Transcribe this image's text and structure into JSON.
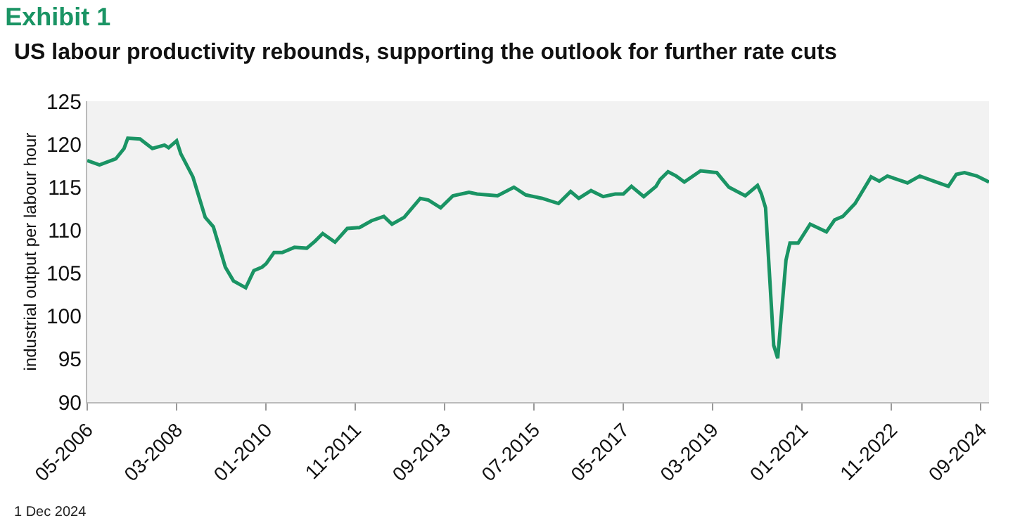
{
  "chart_data": {
    "type": "line",
    "title": "Exhibit 1",
    "subtitle": "US labour productivity rebounds, supporting the outlook for further rate cuts",
    "ylabel": "industrial output per labour hour",
    "annotations": [
      "1 Dec 2024"
    ],
    "x": [
      "2006-05",
      "2006-08",
      "2006-12",
      "2007-02",
      "2007-03",
      "2007-06",
      "2007-09",
      "2007-12",
      "2008-01",
      "2008-03",
      "2008-04",
      "2008-07",
      "2008-10",
      "2008-12",
      "2009-03",
      "2009-05",
      "2009-08",
      "2009-10",
      "2009-12",
      "2010-01",
      "2010-03",
      "2010-05",
      "2010-08",
      "2010-11",
      "2011-01",
      "2011-03",
      "2011-06",
      "2011-09",
      "2011-12",
      "2012-03",
      "2012-06",
      "2012-08",
      "2012-11",
      "2013-03",
      "2013-05",
      "2013-08",
      "2013-11",
      "2014-03",
      "2014-05",
      "2014-10",
      "2015-02",
      "2015-05",
      "2015-09",
      "2016-01",
      "2016-04",
      "2016-06",
      "2016-09",
      "2016-12",
      "2017-03",
      "2017-05",
      "2017-07",
      "2017-10",
      "2018-01",
      "2018-02",
      "2018-04",
      "2018-06",
      "2018-08",
      "2018-12",
      "2019-04",
      "2019-07",
      "2019-11",
      "2020-02",
      "2020-03",
      "2020-04",
      "2020-06",
      "2020-07",
      "2020-09",
      "2020-10",
      "2020-12",
      "2021-03",
      "2021-07",
      "2021-09",
      "2021-11",
      "2022-02",
      "2022-06",
      "2022-08",
      "2022-10",
      "2023-03",
      "2023-06",
      "2023-10",
      "2024-01",
      "2024-03",
      "2024-05",
      "2024-08",
      "2024-11"
    ],
    "series": [
      {
        "color": "#1a9464",
        "values": [
          118.1,
          117.6,
          118.3,
          119.5,
          120.7,
          120.6,
          119.5,
          119.9,
          119.6,
          120.4,
          118.9,
          116.2,
          111.5,
          110.4,
          105.7,
          104.1,
          103.3,
          105.3,
          105.7,
          106.1,
          107.4,
          107.4,
          108.0,
          107.9,
          108.7,
          109.6,
          108.6,
          110.2,
          110.3,
          111.1,
          111.6,
          110.7,
          111.5,
          113.7,
          113.5,
          112.6,
          114.0,
          114.4,
          114.2,
          114.0,
          115.0,
          114.1,
          113.7,
          113.1,
          114.5,
          113.7,
          114.6,
          113.9,
          114.2,
          114.2,
          115.1,
          113.9,
          115.1,
          115.9,
          116.8,
          116.3,
          115.6,
          116.9,
          116.7,
          115.0,
          114.0,
          115.2,
          114.2,
          112.6,
          96.6,
          95.1,
          106.5,
          108.5,
          108.5,
          110.7,
          109.8,
          111.2,
          111.6,
          113.1,
          116.2,
          115.7,
          116.3,
          115.5,
          116.3,
          115.6,
          115.1,
          116.5,
          116.7,
          116.3,
          115.6
        ]
      }
    ],
    "xlim": [
      "2006-05",
      "2024-11"
    ],
    "xticks": [
      {
        "value": "2006-05",
        "label": "05-2006"
      },
      {
        "value": "2008-03",
        "label": "03-2008"
      },
      {
        "value": "2010-01",
        "label": "01-2010"
      },
      {
        "value": "2011-11",
        "label": "11-2011"
      },
      {
        "value": "2013-09",
        "label": "09-2013"
      },
      {
        "value": "2015-07",
        "label": "07-2015"
      },
      {
        "value": "2017-05",
        "label": "05-2017"
      },
      {
        "value": "2019-03",
        "label": "03-2019"
      },
      {
        "value": "2021-01",
        "label": "01-2021"
      },
      {
        "value": "2022-11",
        "label": "11-2022"
      },
      {
        "value": "2024-09",
        "label": "09-2024"
      }
    ],
    "ylim": [
      90,
      125
    ],
    "yticks": [
      90,
      95,
      100,
      105,
      110,
      115,
      120,
      125
    ],
    "line_style": "solid"
  }
}
